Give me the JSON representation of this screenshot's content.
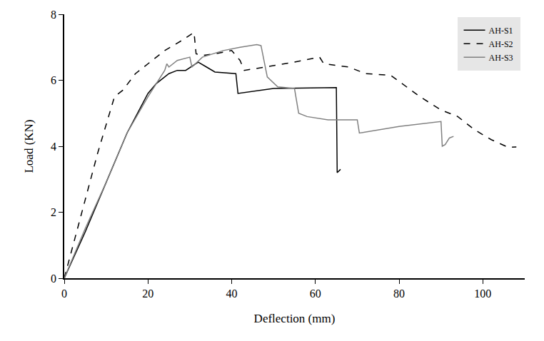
{
  "chart_data": {
    "type": "line",
    "x_label": "Deflection (mm)",
    "y_label": "Load (KN)",
    "xlim": [
      0,
      110
    ],
    "xticks": [
      0,
      20,
      40,
      60,
      80,
      100
    ],
    "ylim": [
      0,
      8
    ],
    "yticks": [
      0,
      2,
      4,
      6,
      8
    ],
    "grid": false,
    "legend": "top right",
    "series": [
      {
        "name": "AH-S1",
        "color": "#000000",
        "line_style": "solid",
        "x": [
          0,
          5,
          10,
          15,
          20,
          22,
          25,
          27,
          29,
          32,
          34,
          36,
          41,
          41.5,
          50,
          60,
          65,
          65.2,
          66
        ],
        "values": [
          0,
          1.4,
          2.9,
          4.4,
          5.6,
          5.9,
          6.2,
          6.3,
          6.3,
          6.55,
          6.4,
          6.25,
          6.2,
          5.6,
          5.75,
          5.78,
          5.78,
          3.2,
          3.3
        ]
      },
      {
        "name": "AH-S2",
        "color": "#000000",
        "line_style": "dash",
        "x": [
          0,
          4,
          8,
          12,
          14,
          17,
          20,
          24,
          28,
          31,
          31.5,
          33,
          36,
          40,
          42,
          43,
          48,
          55,
          61,
          62,
          68,
          72,
          78,
          85,
          90,
          94,
          98,
          102,
          106,
          108
        ],
        "values": [
          0,
          1.9,
          3.8,
          5.5,
          5.7,
          6.2,
          6.5,
          6.9,
          7.2,
          7.45,
          6.8,
          6.75,
          6.8,
          6.9,
          6.6,
          6.3,
          6.4,
          6.55,
          6.7,
          6.5,
          6.4,
          6.2,
          6.15,
          5.5,
          5.1,
          4.9,
          4.5,
          4.2,
          3.97,
          3.98
        ]
      },
      {
        "name": "AH-S3",
        "color": "#808080",
        "line_style": "solid",
        "x": [
          0,
          5,
          10,
          15,
          20,
          22,
          24,
          24.5,
          25,
          27,
          30,
          30.5,
          33,
          38,
          42,
          46,
          47,
          48.5,
          51,
          55,
          56,
          58,
          63,
          70,
          70.5,
          80,
          90,
          90.3,
          91,
          92,
          93
        ],
        "values": [
          0,
          1.5,
          2.9,
          4.4,
          5.5,
          5.9,
          6.3,
          6.5,
          6.4,
          6.6,
          6.7,
          6.4,
          6.7,
          6.9,
          7.0,
          7.08,
          7.05,
          6.1,
          5.8,
          5.75,
          5.0,
          4.9,
          4.8,
          4.8,
          4.4,
          4.6,
          4.75,
          4.0,
          4.05,
          4.25,
          4.3
        ]
      }
    ]
  }
}
